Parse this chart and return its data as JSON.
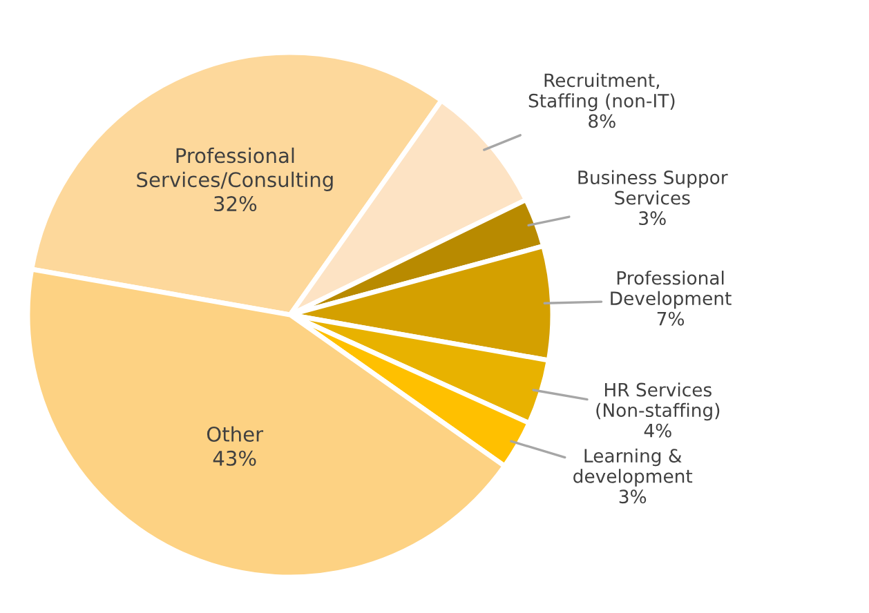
{
  "chart_data": {
    "type": "pie",
    "categories": [
      "Professional\nServices/Consulting",
      "Recruitment,\nStaffing (non-IT)",
      "Business Suppor\nServices",
      "Professional\nDevelopment",
      "HR Services\n(Non-staffing)",
      "Learning &\ndevelopment",
      "Other"
    ],
    "values": [
      32,
      8,
      3,
      7,
      4,
      3,
      43
    ],
    "colors": [
      "#fdd89b",
      "#fde3c4",
      "#b88a00",
      "#d4a000",
      "#e8b200",
      "#ffc000",
      "#fdd283"
    ],
    "value_labels": [
      "32%",
      "8%",
      "3%",
      "7%",
      "4%",
      "3%",
      "43%"
    ]
  }
}
